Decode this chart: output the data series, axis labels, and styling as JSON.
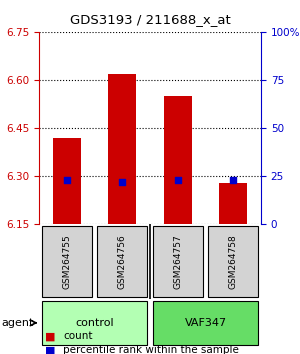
{
  "title": "GDS3193 / 211688_x_at",
  "samples": [
    "GSM264755",
    "GSM264756",
    "GSM264757",
    "GSM264758"
  ],
  "groups": [
    "control",
    "control",
    "VAF347",
    "VAF347"
  ],
  "group_labels": [
    "control",
    "VAF347"
  ],
  "bar_values": [
    6.42,
    6.62,
    6.55,
    6.28
  ],
  "percentile_values": [
    23,
    22,
    23,
    23
  ],
  "ylim_left": [
    6.15,
    6.75
  ],
  "yticks_left": [
    6.15,
    6.3,
    6.45,
    6.6,
    6.75
  ],
  "yticks_right": [
    0,
    25,
    50,
    75,
    100
  ],
  "bar_color": "#cc0000",
  "dot_color": "#0000cc",
  "bar_width": 0.5,
  "group_colors": {
    "control": "#b3ffb3",
    "VAF347": "#66dd66"
  },
  "agent_label": "agent",
  "legend_count_label": "count",
  "legend_pct_label": "percentile rank within the sample"
}
